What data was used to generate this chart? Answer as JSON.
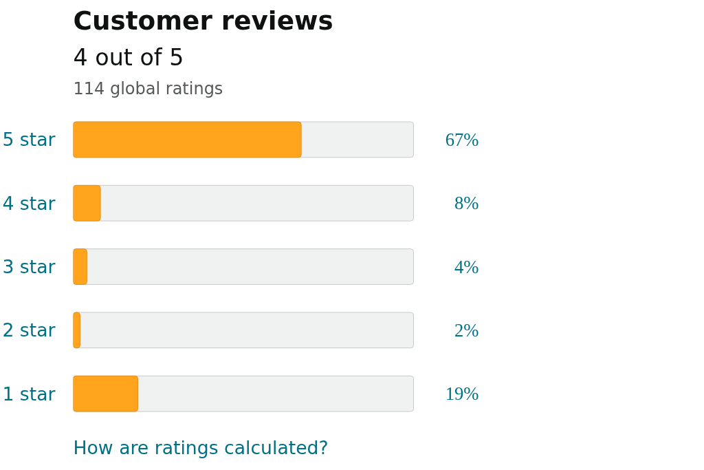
{
  "chart_data": {
    "type": "bar",
    "orientation": "horizontal",
    "title": "Customer reviews",
    "subtitle": "4 out of 5",
    "annotations": [
      "114 global ratings",
      "How are ratings calculated?"
    ],
    "categories": [
      "5 star",
      "4 star",
      "3 star",
      "2 star",
      "1 star"
    ],
    "values": [
      67,
      8,
      4,
      2,
      19
    ],
    "color": "#ffa41c",
    "value_labels": [
      "67%",
      "8%",
      "4%",
      "2%",
      "19%"
    ],
    "xlim": [
      0,
      100
    ],
    "grid": false,
    "tick_labels": "y"
  }
}
